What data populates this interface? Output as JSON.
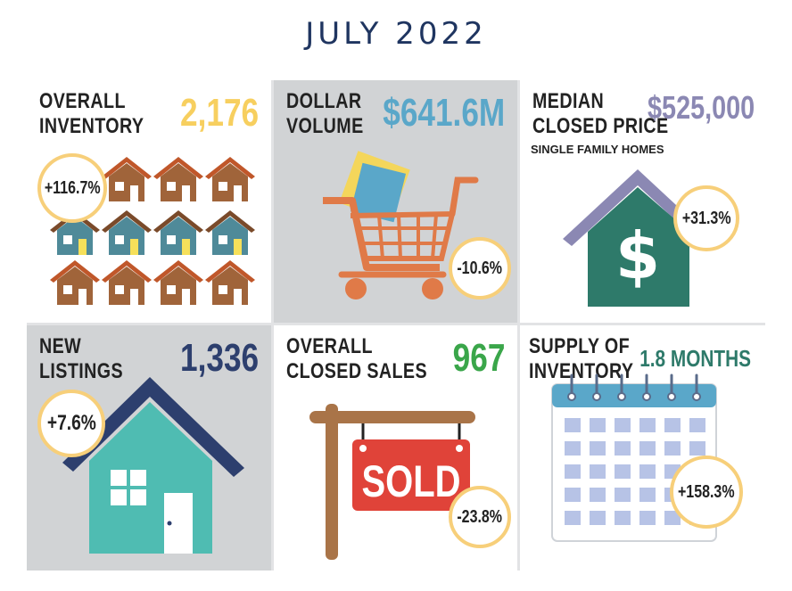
{
  "title": "JULY 2022",
  "panels": {
    "inventory": {
      "label_line1": "OVERALL",
      "label_line2": "INVENTORY",
      "value": "2,176",
      "change": "+116.7%",
      "value_color": "#f7cf5f"
    },
    "volume": {
      "label_line1": "DOLLAR",
      "label_line2": "VOLUME",
      "value": "$641.6M",
      "change": "-10.6%",
      "value_color": "#5aa7c9"
    },
    "median_price": {
      "label_line1": "MEDIAN",
      "label_line2": "CLOSED PRICE",
      "sublabel": "SINGLE FAMILY HOMES",
      "value": "$525,000",
      "change": "+31.3%",
      "value_color": "#8b88b3"
    },
    "new_listings": {
      "label_line1": "NEW",
      "label_line2": "LISTINGS",
      "value": "1,336",
      "change": "+7.6%",
      "value_color": "#2d3f6e"
    },
    "closed_sales": {
      "label_line1": "OVERALL",
      "label_line2": "CLOSED SALES",
      "value": "967",
      "change": "-23.8%",
      "sign_text": "SOLD",
      "value_color": "#3aa64a"
    },
    "supply": {
      "label_line1": "SUPPLY OF",
      "label_line2": "INVENTORY",
      "value": "1.8 MONTHS",
      "change": "+158.3%",
      "value_color": "#2e7a6a"
    }
  },
  "colors": {
    "brown_house": "#a0643a",
    "roof": "#c0572a",
    "teal_house": "#4f8a99",
    "badge_border": "#f7cf7a"
  }
}
